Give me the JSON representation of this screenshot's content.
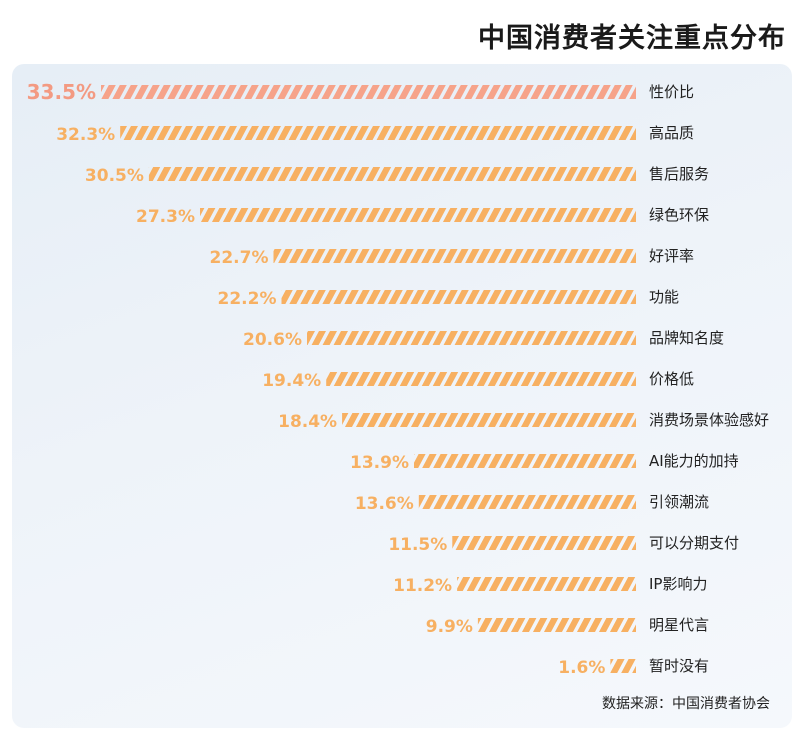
{
  "header": {
    "title": "中国消费者关注重点分布"
  },
  "footer": {
    "source": "数据来源：中国消费者协会"
  },
  "colors": {
    "highlight": "#f6a38a",
    "bar": "#f7b062",
    "label": "#f7b062",
    "highlight_label": "#f39a82",
    "category_text": "#222222"
  },
  "chart_data": {
    "type": "bar",
    "orientation": "horizontal",
    "title": "中国消费者关注重点分布",
    "xlabel": "",
    "ylabel": "",
    "unit": "%",
    "categories": [
      "性价比",
      "高品质",
      "售后服务",
      "绿色环保",
      "好评率",
      "功能",
      "品牌知名度",
      "价格低",
      "消费场景体验感好",
      "AI能力的加持",
      "引领潮流",
      "可以分期支付",
      "IP影响力",
      "明星代言",
      "暂时没有"
    ],
    "values": [
      33.5,
      32.3,
      30.5,
      27.3,
      22.7,
      22.2,
      20.6,
      19.4,
      18.4,
      13.9,
      13.6,
      11.5,
      11.2,
      9.9,
      1.6
    ],
    "value_labels": [
      "33.5%",
      "32.3%",
      "30.5%",
      "27.3%",
      "22.7%",
      "22.2%",
      "20.6%",
      "19.4%",
      "18.4%",
      "13.9%",
      "13.6%",
      "11.5%",
      "11.2%",
      "9.9%",
      "1.6%"
    ],
    "highlighted_index": 0,
    "xlim": [
      0,
      33.5
    ],
    "grid": false,
    "legend": "none"
  }
}
